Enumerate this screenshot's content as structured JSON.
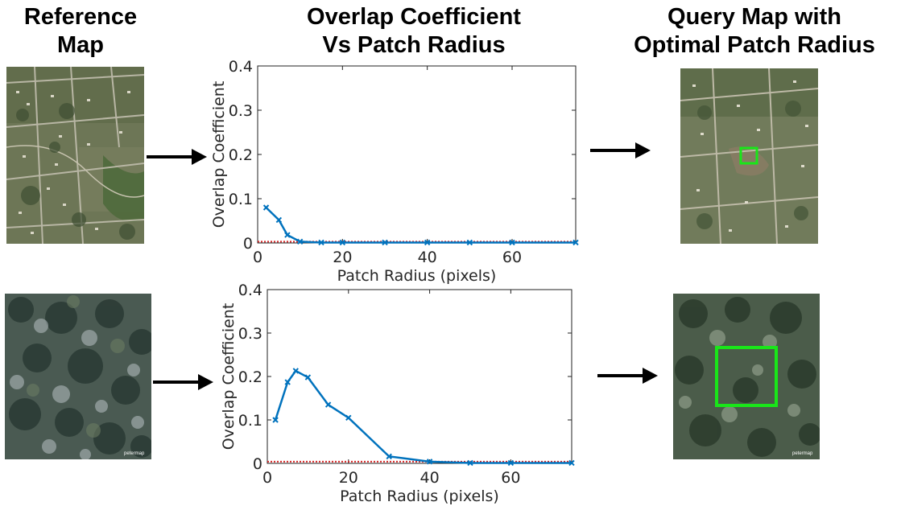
{
  "titles": {
    "reference": [
      "Reference",
      "Map"
    ],
    "chart": [
      "Overlap Coefficient",
      "Vs Patch Radius"
    ],
    "query": [
      "Query Map with",
      "Optimal Patch Radius"
    ]
  },
  "colors": {
    "line": "#0072BD",
    "threshold": "#D62728",
    "highlight_box": "#19E619",
    "arrow": "#000000"
  },
  "maps": {
    "top_reference_icon": "suburban-aerial-image",
    "top_query_icon": "suburban-aerial-image-with-box",
    "bottom_reference_icon": "forest-aerial-image",
    "bottom_query_icon": "forest-aerial-image-with-box",
    "watermark": "petermap"
  },
  "chart_data": [
    {
      "type": "line",
      "xlabel": "Patch Radius (pixels)",
      "ylabel": "Overlap Coefficient",
      "xlim": [
        0,
        75
      ],
      "ylim": [
        0,
        0.4
      ],
      "xticks": [
        0,
        20,
        40,
        60
      ],
      "yticks": [
        0,
        0.1,
        0.2,
        0.3,
        0.4
      ],
      "ytick_labels": [
        "0",
        "0.1",
        "0.2",
        "0.3",
        "0.4"
      ],
      "threshold": 0.003,
      "x": [
        2,
        5,
        7,
        10,
        15,
        20,
        30,
        40,
        50,
        60,
        75
      ],
      "y": [
        0.08,
        0.052,
        0.018,
        0.003,
        0.001,
        0.001,
        0.001,
        0.001,
        0.001,
        0.001,
        0.001
      ]
    },
    {
      "type": "line",
      "xlabel": "Patch Radius (pixels)",
      "ylabel": "Overlap Coefficient",
      "xlim": [
        0,
        75
      ],
      "ylim": [
        0,
        0.4
      ],
      "xticks": [
        0,
        20,
        40,
        60
      ],
      "yticks": [
        0,
        0.1,
        0.2,
        0.3,
        0.4
      ],
      "ytick_labels": [
        "0",
        "0.1",
        "0.2",
        "0.3",
        "0.4"
      ],
      "threshold": 0.004,
      "x": [
        2,
        5,
        7,
        10,
        15,
        20,
        30,
        40,
        50,
        60,
        75
      ],
      "y": [
        0.1,
        0.187,
        0.213,
        0.198,
        0.135,
        0.105,
        0.016,
        0.004,
        0.001,
        0.001,
        0.001
      ]
    }
  ]
}
